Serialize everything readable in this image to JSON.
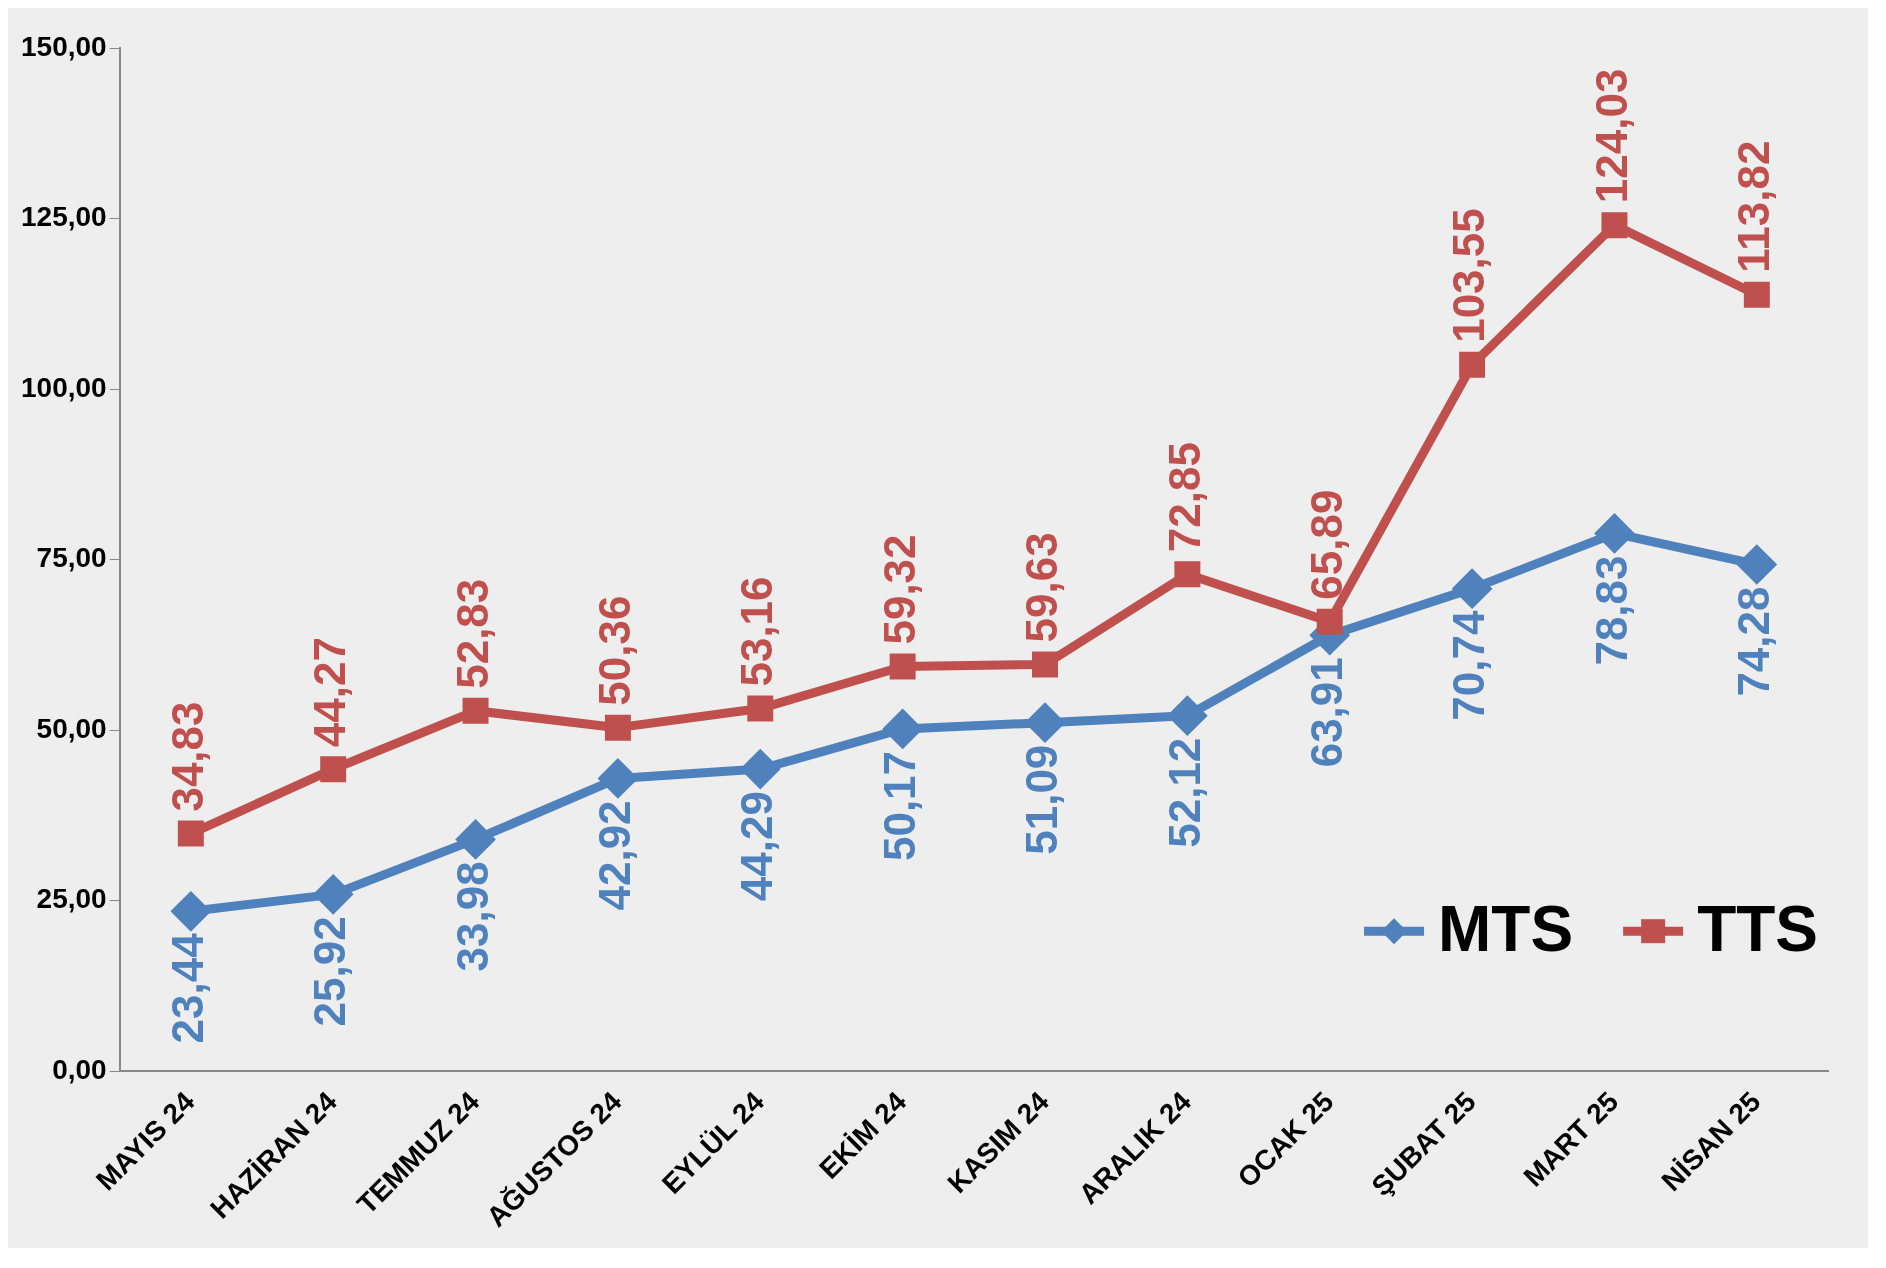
{
  "chart_data": {
    "type": "line",
    "categories": [
      "MAYIS 24",
      "HAZİRAN 24",
      "TEMMUZ 24",
      "AĞUSTOS 24",
      "EYLÜL 24",
      "EKİM 24",
      "KASIM 24",
      "ARALIK 24",
      "OCAK 25",
      "ŞUBAT 25",
      "MART 25",
      "NİSAN 25"
    ],
    "series": [
      {
        "name": "MTS",
        "color": "#4f81bd",
        "marker": "diamond",
        "values": [
          23.44,
          25.92,
          33.98,
          42.92,
          44.29,
          50.17,
          51.09,
          52.12,
          63.91,
          70.74,
          78.83,
          74.28
        ],
        "value_labels": [
          "23,44",
          "25,92",
          "33,98",
          "42,92",
          "44,29",
          "50,17",
          "51,09",
          "52,12",
          "63,91",
          "70,74",
          "78,83",
          "74,28"
        ]
      },
      {
        "name": "TTS",
        "color": "#c0504d",
        "marker": "square",
        "values": [
          34.83,
          44.27,
          52.83,
          50.36,
          53.16,
          59.32,
          59.63,
          72.85,
          65.89,
          103.55,
          124.03,
          113.82
        ],
        "value_labels": [
          "34,83",
          "44,27",
          "52,83",
          "50,36",
          "53,16",
          "59,32",
          "59,63",
          "72,85",
          "65,89",
          "103,55",
          "124,03",
          "113,82"
        ]
      }
    ],
    "ylim": [
      0,
      150
    ],
    "yticks": [
      {
        "value": 0,
        "label": "0,00"
      },
      {
        "value": 25,
        "label": "25,00"
      },
      {
        "value": 50,
        "label": "50,00"
      },
      {
        "value": 75,
        "label": "75,00"
      },
      {
        "value": 100,
        "label": "100,00"
      },
      {
        "value": 125,
        "label": "125,00"
      },
      {
        "value": 150,
        "label": "150,00"
      }
    ],
    "grid": false,
    "legend": "bottom right"
  }
}
